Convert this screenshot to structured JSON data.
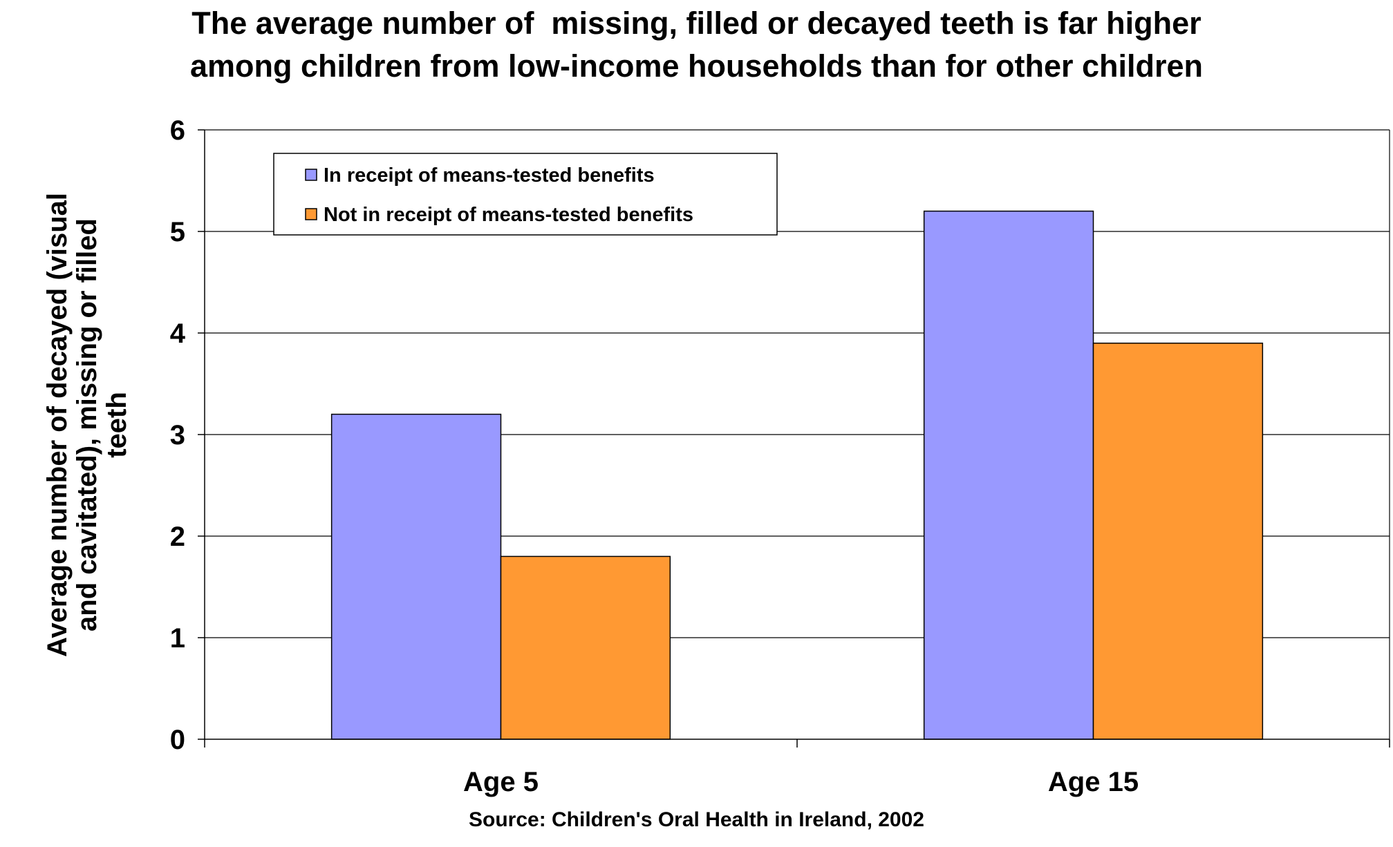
{
  "chart_data": {
    "type": "bar",
    "title_lines": [
      "The average number of  missing, filled or decayed teeth is far higher",
      "among children from low-income households than for other children"
    ],
    "ylabel_lines": [
      "Average number of decayed (visual",
      "and cavitated), missing or filled",
      "teeth"
    ],
    "xlabel": "",
    "categories": [
      "Age 5",
      "Age 15"
    ],
    "series": [
      {
        "name": "In receipt of means-tested benefits",
        "values": [
          3.2,
          5.2
        ],
        "color": "#9999FF"
      },
      {
        "name": "Not in receipt of means-tested benefits",
        "values": [
          1.8,
          3.9
        ],
        "color": "#FF9933"
      }
    ],
    "ylim": [
      0,
      6
    ],
    "yticks": [
      "0",
      "1",
      "2",
      "3",
      "4",
      "5",
      "6"
    ],
    "grid": true,
    "legend_position": "top-left",
    "source": "Source: Children's Oral Health in Ireland, 2002"
  }
}
